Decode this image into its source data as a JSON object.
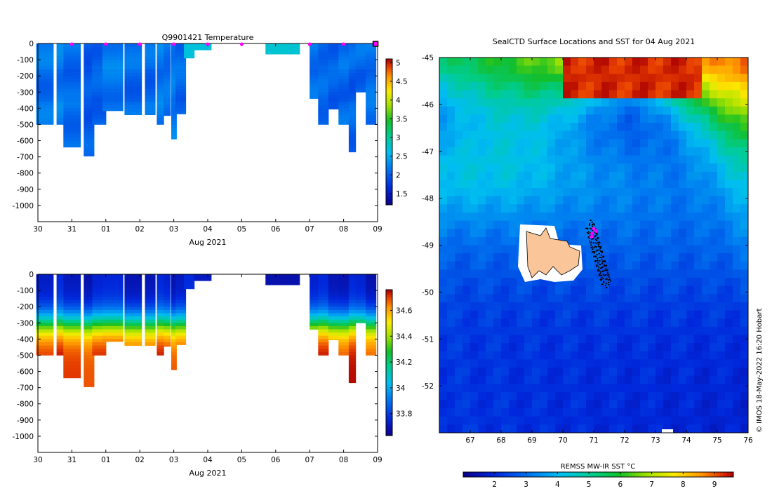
{
  "chart_data": [
    {
      "type": "heatmap",
      "title": "Q9901421  Temperature",
      "xlabel": "Aug 2021",
      "ylabel": "",
      "x_tick_labels": [
        "30",
        "31",
        "01",
        "02",
        "03",
        "04",
        "05",
        "06",
        "07",
        "08",
        "09"
      ],
      "y_ticks": [
        0,
        -100,
        -200,
        -300,
        -400,
        -500,
        -600,
        -700,
        -800,
        -900,
        -1000
      ],
      "ylim": [
        -1100,
        0
      ],
      "colorbar": {
        "min": 1.2,
        "max": 5.1,
        "ticks": [
          1.5,
          2,
          2.5,
          3,
          3.5,
          4,
          4.5,
          5
        ]
      },
      "surface_markers_day": [
        1.0,
        2.0,
        3.0,
        4.0,
        5.0,
        6.0,
        8.0,
        9.0
      ],
      "profiles": [
        {
          "day": 0.2,
          "w": 0.5,
          "depth": 500,
          "value": 2.15
        },
        {
          "day": 0.7,
          "w": 0.3,
          "depth": 500,
          "value": 2.2
        },
        {
          "day": 1.0,
          "w": 0.5,
          "depth": 640,
          "value": 2.1
        },
        {
          "day": 1.5,
          "w": 0.3,
          "depth": 695,
          "value": 2.0
        },
        {
          "day": 1.8,
          "w": 0.4,
          "depth": 500,
          "value": 2.05
        },
        {
          "day": 2.2,
          "w": 0.6,
          "depth": 415,
          "value": 2.2
        },
        {
          "day": 2.8,
          "w": 0.5,
          "depth": 440,
          "value": 2.1
        },
        {
          "day": 3.3,
          "w": 0.3,
          "depth": 440,
          "value": 2.1
        },
        {
          "day": 3.6,
          "w": 0.2,
          "depth": 500,
          "value": 2.2
        },
        {
          "day": 3.8,
          "w": 0.2,
          "depth": 445,
          "value": 2.15
        },
        {
          "day": 4.0,
          "w": 0.15,
          "depth": 590,
          "value": 2.2
        },
        {
          "day": 4.2,
          "w": 0.3,
          "depth": 435,
          "value": 2.1
        },
        {
          "day": 4.45,
          "w": 0.3,
          "depth": 90,
          "value": 2.7
        },
        {
          "day": 4.85,
          "w": 0.5,
          "depth": 40,
          "value": 2.7
        },
        {
          "day": 7.2,
          "w": 1.0,
          "depth": 65,
          "value": 2.75
        },
        {
          "day": 8.15,
          "w": 0.3,
          "depth": 340,
          "value": 2.15
        },
        {
          "day": 8.4,
          "w": 0.3,
          "depth": 500,
          "value": 2.1
        },
        {
          "day": 8.7,
          "w": 0.3,
          "depth": 405,
          "value": 2.05
        },
        {
          "day": 9.0,
          "w": 0.3,
          "depth": 500,
          "value": 2.1
        },
        {
          "day": 9.25,
          "w": 0.2,
          "depth": 670,
          "value": 2.05
        },
        {
          "day": 9.5,
          "w": 0.3,
          "depth": 300,
          "value": 2.1
        },
        {
          "day": 9.8,
          "w": 0.3,
          "depth": 500,
          "value": 2.15
        }
      ]
    },
    {
      "type": "heatmap",
      "title": "",
      "xlabel": "Aug 2021",
      "ylabel": "",
      "x_tick_labels": [
        "30",
        "31",
        "01",
        "02",
        "03",
        "04",
        "05",
        "06",
        "07",
        "08",
        "09"
      ],
      "y_ticks": [
        0,
        -100,
        -200,
        -300,
        -400,
        -500,
        -600,
        -700,
        -800,
        -900,
        -1000
      ],
      "ylim": [
        -1100,
        0
      ],
      "colorbar": {
        "min": 33.63,
        "max": 34.76,
        "ticks": [
          33.8,
          34,
          34.2,
          34.4,
          34.6
        ]
      },
      "profiles": [
        {
          "day": 0.2,
          "w": 0.5,
          "depth": 500
        },
        {
          "day": 0.7,
          "w": 0.3,
          "depth": 500
        },
        {
          "day": 1.0,
          "w": 0.5,
          "depth": 640
        },
        {
          "day": 1.5,
          "w": 0.3,
          "depth": 695
        },
        {
          "day": 1.8,
          "w": 0.4,
          "depth": 500
        },
        {
          "day": 2.2,
          "w": 0.6,
          "depth": 415
        },
        {
          "day": 2.8,
          "w": 0.5,
          "depth": 440
        },
        {
          "day": 3.3,
          "w": 0.3,
          "depth": 440
        },
        {
          "day": 3.6,
          "w": 0.2,
          "depth": 500
        },
        {
          "day": 3.8,
          "w": 0.2,
          "depth": 445
        },
        {
          "day": 4.0,
          "w": 0.15,
          "depth": 590
        },
        {
          "day": 4.2,
          "w": 0.3,
          "depth": 435
        },
        {
          "day": 4.45,
          "w": 0.3,
          "depth": 90
        },
        {
          "day": 4.85,
          "w": 0.5,
          "depth": 40
        },
        {
          "day": 7.2,
          "w": 1.0,
          "depth": 65
        },
        {
          "day": 8.15,
          "w": 0.3,
          "depth": 340
        },
        {
          "day": 8.4,
          "w": 0.3,
          "depth": 500
        },
        {
          "day": 8.7,
          "w": 0.3,
          "depth": 405
        },
        {
          "day": 9.0,
          "w": 0.3,
          "depth": 500
        },
        {
          "day": 9.25,
          "w": 0.2,
          "depth": 670
        },
        {
          "day": 9.5,
          "w": 0.3,
          "depth": 300
        },
        {
          "day": 9.8,
          "w": 0.3,
          "depth": 500
        }
      ]
    },
    {
      "type": "heatmap",
      "title": "SealCTD Surface Locations and SST for 04 Aug 2021",
      "xlabel": "",
      "ylabel": "",
      "x_tick_labels": [
        "67",
        "68",
        "69",
        "70",
        "71",
        "72",
        "73",
        "74",
        "75",
        "76"
      ],
      "y_tick_labels": [
        "-45",
        "-46",
        "-47",
        "-48",
        "-49",
        "-50",
        "-51",
        "-52"
      ],
      "xlim": [
        66,
        76
      ],
      "ylim": [
        -53,
        -45
      ],
      "colorbar_label": "REMSS MW-IR SST °C",
      "colorbar": {
        "min": 1,
        "max": 9.6,
        "ticks": [
          2,
          3,
          4,
          5,
          6,
          7,
          8,
          9
        ]
      },
      "credit": "© IMOS 18-May-2022 16:20 Hobart",
      "track_magenta": [
        [
          70.95,
          -48.75
        ],
        [
          71.0,
          -48.65
        ],
        [
          71.08,
          -48.7
        ],
        [
          70.93,
          -48.82
        ]
      ]
    }
  ]
}
